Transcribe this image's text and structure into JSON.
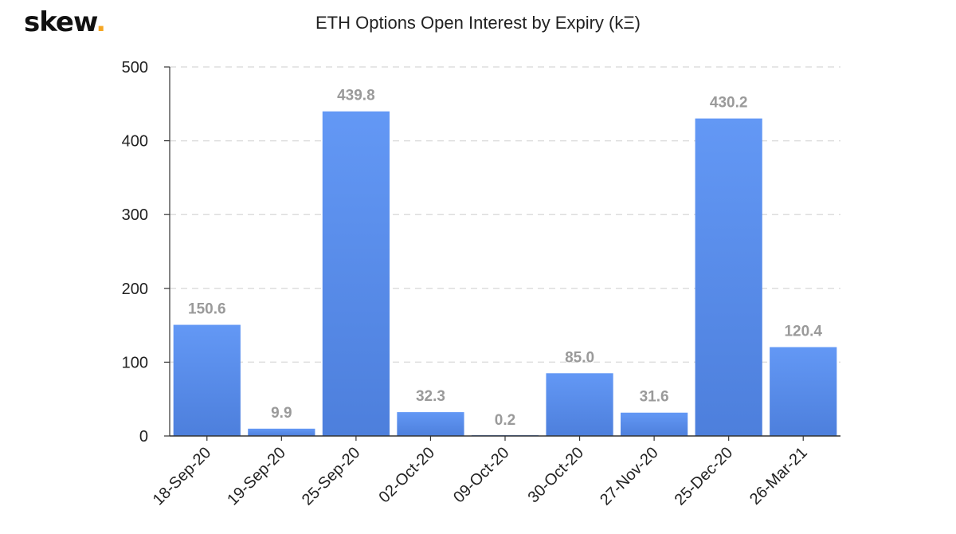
{
  "brand": {
    "name": "skew",
    "dot": "."
  },
  "colors": {
    "bar_top": "#6398f5",
    "bar_bottom": "#4d7fdc",
    "grid": "#dddddd",
    "axis": "#333333",
    "data_label": "#9a9a9a",
    "brand_dot": "#f5a623"
  },
  "chart_data": {
    "type": "bar",
    "title": "ETH Options Open Interest by Expiry (kΞ)",
    "xlabel": "",
    "ylabel": "",
    "categories": [
      "18-Sep-20",
      "19-Sep-20",
      "25-Sep-20",
      "02-Oct-20",
      "09-Oct-20",
      "30-Oct-20",
      "27-Nov-20",
      "25-Dec-20",
      "26-Mar-21"
    ],
    "values": [
      150.6,
      9.9,
      439.8,
      32.3,
      0.2,
      85.0,
      31.6,
      430.2,
      120.4
    ],
    "data_labels": [
      "150.6",
      "9.9",
      "439.8",
      "32.3",
      "0.2",
      "85.0",
      "31.6",
      "430.2",
      "120.4"
    ],
    "ylim": [
      0,
      500
    ],
    "yticks": [
      0,
      100,
      200,
      300,
      400,
      500
    ],
    "grid": true,
    "legend": "none"
  }
}
